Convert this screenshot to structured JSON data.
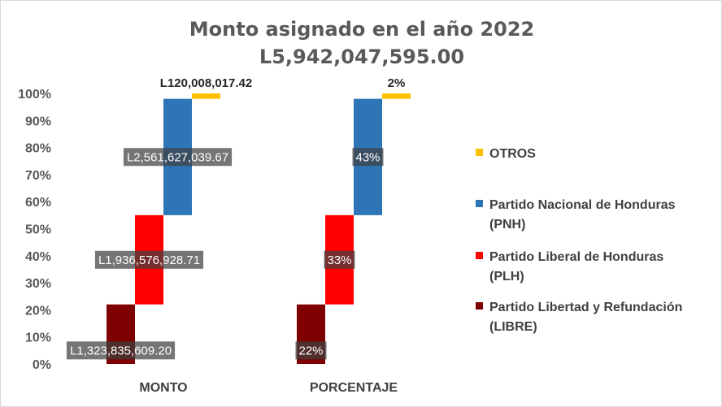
{
  "chart_data": {
    "type": "bar",
    "title": "Monto asignado en el año 2022",
    "subtitle": "L5,942,047,595.00",
    "categories": [
      "MONTO",
      "PORCENTAJE"
    ],
    "y_ticks": [
      "0%",
      "10%",
      "20%",
      "30%",
      "40%",
      "50%",
      "60%",
      "70%",
      "80%",
      "90%",
      "100%"
    ],
    "ylim": [
      0,
      100
    ],
    "grid": false,
    "legend_position": "right",
    "series": [
      {
        "name": "Partido Libertad y Refundación (LIBRE)",
        "legend_lines": [
          "Partido Libertad y Refundación",
          "(LIBRE)"
        ],
        "color": "#7f0000",
        "range": [
          0,
          22
        ],
        "labels": [
          "L1,323,835,609.20",
          "22%"
        ]
      },
      {
        "name": "Partido Liberal de Honduras (PLH)",
        "legend_lines": [
          "Partido Liberal de Honduras",
          "(PLH)"
        ],
        "color": "#ff0000",
        "range": [
          22,
          55
        ],
        "labels": [
          "L1,936,576,928.71",
          "33%"
        ]
      },
      {
        "name": "Partido Nacional de Honduras (PNH)",
        "legend_lines": [
          "Partido Nacional de Honduras",
          "(PNH)"
        ],
        "color": "#2e75b6",
        "range": [
          55,
          98
        ],
        "labels": [
          "L2,561,627,039.67",
          "43%"
        ]
      },
      {
        "name": "OTROS",
        "legend_lines": [
          "OTROS"
        ],
        "color": "#ffc000",
        "range": [
          98,
          100
        ],
        "labels": [
          "L120,008,017.42",
          "2%"
        ]
      }
    ]
  }
}
